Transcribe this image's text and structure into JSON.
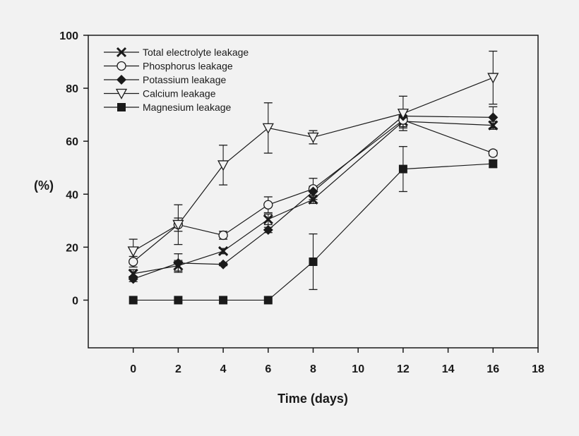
{
  "chart_data": {
    "type": "line",
    "title": "",
    "xlabel": "Time (days)",
    "ylabel": "(%)",
    "xlim": [
      -2,
      18
    ],
    "ylim": [
      -18,
      100
    ],
    "xticks": [
      0,
      2,
      4,
      6,
      8,
      10,
      12,
      14,
      16,
      18
    ],
    "yticks": [
      0,
      20,
      40,
      60,
      80,
      100
    ],
    "grid": false,
    "legend_position": "top-left",
    "x": [
      0,
      2,
      4,
      6,
      8,
      12,
      16
    ],
    "series": [
      {
        "name": "Total electrolyte leakage",
        "marker": "x-cross",
        "values": [
          10,
          13,
          18.5,
          30.5,
          38,
          67.5,
          66
        ],
        "errors": [
          1.5,
          2,
          1,
          2,
          1.5,
          2,
          1.5
        ]
      },
      {
        "name": "Phosphorus leakage",
        "marker": "open-circle",
        "values": [
          14.5,
          28.5,
          24.5,
          36,
          42,
          68,
          55.5
        ],
        "errors": [
          2,
          2.5,
          1.5,
          3,
          4,
          3,
          1
        ]
      },
      {
        "name": "Potassium leakage",
        "marker": "filled-diamond",
        "values": [
          8,
          14,
          13.5,
          26.5,
          41,
          69.5,
          69
        ],
        "errors": [
          1,
          3.5,
          0.5,
          1,
          2,
          1.5,
          4
        ]
      },
      {
        "name": "Calcium leakage",
        "marker": "open-triangle-down",
        "values": [
          18.5,
          28.5,
          51,
          65,
          61.5,
          70.5,
          84
        ],
        "errors": [
          4.5,
          7.5,
          7.5,
          9.5,
          2.5,
          6.5,
          10
        ]
      },
      {
        "name": "Magnesium leakage",
        "marker": "filled-square",
        "values": [
          0,
          0,
          0,
          0,
          14.5,
          49.5,
          51.5
        ],
        "errors": [
          0,
          0,
          0,
          0,
          10.5,
          8.5,
          1.5
        ]
      }
    ]
  }
}
